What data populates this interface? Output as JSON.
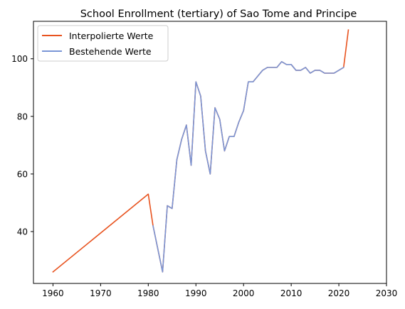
{
  "chart_data": {
    "type": "line",
    "title": "School Enrollment (tertiary) of Sao Tome and Principe",
    "xlabel": "",
    "ylabel": "",
    "xlim": [
      1955.9,
      2030
    ],
    "ylim": [
      22,
      113
    ],
    "xticks": [
      1960,
      1970,
      1980,
      1990,
      2000,
      2010,
      2020,
      2030
    ],
    "yticks": [
      40,
      60,
      80,
      100
    ],
    "grid": false,
    "legend_position": "top-left",
    "series": [
      {
        "name": "Interpolierte Werte",
        "color": "#e8531f",
        "x": [
          1960,
          1980,
          1981,
          1982,
          1983,
          1984,
          1985,
          1986,
          1987,
          1988,
          1989,
          1990,
          1991,
          1992,
          1993,
          1994,
          1995,
          1996,
          1997,
          1998,
          1999,
          2000,
          2001,
          2002,
          2003,
          2004,
          2005,
          2006,
          2007,
          2008,
          2009,
          2010,
          2011,
          2012,
          2013,
          2014,
          2015,
          2016,
          2017,
          2018,
          2019,
          2020,
          2021,
          2022
        ],
        "y": [
          26,
          53,
          42,
          34,
          26,
          49,
          48,
          65,
          72,
          77,
          63,
          92,
          87,
          68,
          60,
          83,
          79,
          68,
          73,
          73,
          78,
          82,
          92,
          92,
          94,
          96,
          97,
          97,
          97,
          99,
          98,
          98,
          96,
          96,
          97,
          95,
          96,
          96,
          95,
          95,
          95,
          96,
          97,
          110
        ]
      },
      {
        "name": "Bestehende Werte",
        "color": "#7a96d6",
        "x": [
          1981,
          1982,
          1983,
          1984,
          1985,
          1986,
          1987,
          1988,
          1989,
          1990,
          1991,
          1992,
          1993,
          1994,
          1995,
          1996,
          1997,
          1998,
          1999,
          2000,
          2001,
          2002,
          2003,
          2004,
          2005,
          2006,
          2007,
          2008,
          2009,
          2010,
          2011,
          2012,
          2013,
          2014,
          2015,
          2016,
          2017,
          2018,
          2019,
          2020,
          2021
        ],
        "y": [
          42,
          34,
          26,
          49,
          48,
          65,
          72,
          77,
          63,
          92,
          87,
          68,
          60,
          83,
          79,
          68,
          73,
          73,
          78,
          82,
          92,
          92,
          94,
          96,
          97,
          97,
          97,
          99,
          98,
          98,
          96,
          96,
          97,
          95,
          96,
          96,
          95,
          95,
          95,
          96,
          97
        ]
      }
    ]
  }
}
